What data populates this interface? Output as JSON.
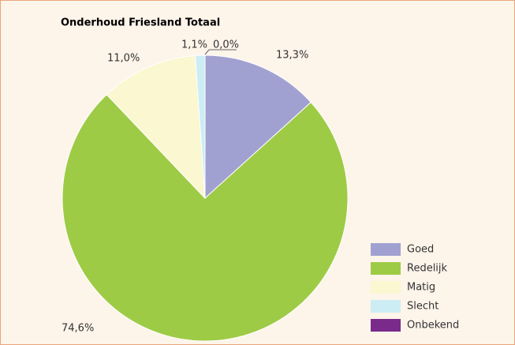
{
  "chart_data": {
    "type": "pie",
    "title": "Onderhoud Friesland Totaal",
    "categories": [
      "Goed",
      "Redelijk",
      "Matig",
      "Slecht",
      "Onbekend"
    ],
    "values": [
      13.3,
      74.6,
      11.0,
      1.1,
      0.0
    ],
    "value_labels": [
      "13,3%",
      "74,6%",
      "11,0%",
      "1,1%",
      "0,0%"
    ],
    "colors": [
      "#a1a1d1",
      "#9ecb45",
      "#faf7d1",
      "#cdedf4",
      "#7a2a8a"
    ],
    "legend": "lower right"
  }
}
